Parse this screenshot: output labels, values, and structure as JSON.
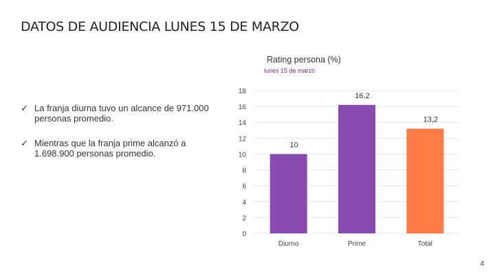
{
  "slide": {
    "title": "DATOS DE AUDIENCIA LUNES 15 DE MARZO",
    "page_number": "4"
  },
  "bullets": [
    {
      "icon": "check-icon",
      "mark": "✓",
      "text": "La franja diurna tuvo un alcance de 971.000 personas promedio."
    },
    {
      "icon": "check-icon",
      "mark": "✓",
      "text": "Mientras que la franja prime alcanzó a 1.698.900 personas promedio."
    }
  ],
  "chart_data": {
    "type": "bar",
    "title": "Rating persona (%)",
    "subtitle": "lunes 15 de marzo",
    "categories": [
      "Diurno",
      "Prime",
      "Total"
    ],
    "values": [
      10,
      16.2,
      13.2
    ],
    "value_labels": [
      "10",
      "16,2",
      "13,2"
    ],
    "bar_colors": [
      "#8a4bb0",
      "#8a4bb0",
      "#ff7a45"
    ],
    "subtitle_color": "#7a2a8a",
    "ylim": [
      0,
      18
    ],
    "yticks": [
      0,
      2,
      4,
      6,
      8,
      10,
      12,
      14,
      16,
      18
    ],
    "grid": true,
    "legend": "none",
    "xlabel": "",
    "ylabel": ""
  }
}
